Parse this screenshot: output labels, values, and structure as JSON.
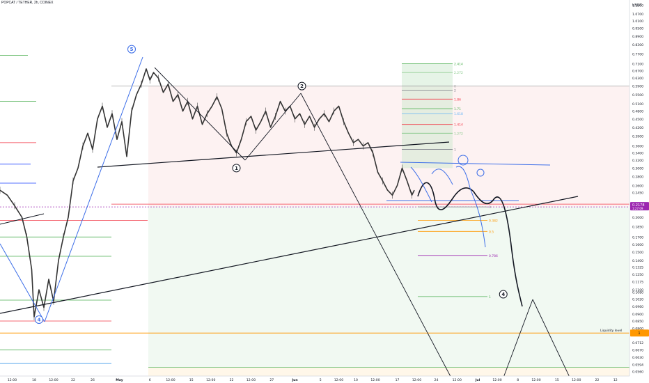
{
  "header": {
    "title": "POPCAT / TETHER, 2h, COINEX"
  },
  "chart_data": {
    "type": "line",
    "title": "POPCAT / TETHER, 2h, COINEX",
    "currency": "USDT",
    "y_scale": "log",
    "ylim": [
      0.054,
      1.2
    ],
    "last_price": "0.2178",
    "last_price_sub": "1:27:09",
    "liquidity_level": {
      "label": "Liquidity level",
      "value": 0.077,
      "price_label": "1"
    },
    "y_ticks": [
      {
        "v": 1.15,
        "l": "1.1500"
      },
      {
        "v": 1.07,
        "l": "1.0700"
      },
      {
        "v": 1.01,
        "l": "1.0100"
      },
      {
        "v": 0.95,
        "l": "0.9500"
      },
      {
        "v": 0.89,
        "l": "0.8900"
      },
      {
        "v": 0.83,
        "l": "0.8300"
      },
      {
        "v": 0.77,
        "l": "0.7700"
      },
      {
        "v": 0.71,
        "l": "0.7100"
      },
      {
        "v": 0.67,
        "l": "0.6700"
      },
      {
        "v": 0.63,
        "l": "0.6300"
      },
      {
        "v": 0.59,
        "l": "0.5900"
      },
      {
        "v": 0.55,
        "l": "0.5500"
      },
      {
        "v": 0.51,
        "l": "0.5100"
      },
      {
        "v": 0.48,
        "l": "0.4800"
      },
      {
        "v": 0.45,
        "l": "0.4500"
      },
      {
        "v": 0.42,
        "l": "0.4200"
      },
      {
        "v": 0.39,
        "l": "0.3900"
      },
      {
        "v": 0.36,
        "l": "0.3600"
      },
      {
        "v": 0.34,
        "l": "0.3400"
      },
      {
        "v": 0.32,
        "l": "0.3200"
      },
      {
        "v": 0.3,
        "l": "0.3000"
      },
      {
        "v": 0.28,
        "l": "0.2800"
      },
      {
        "v": 0.26,
        "l": "0.2600"
      },
      {
        "v": 0.245,
        "l": "0.2450"
      },
      {
        "v": 0.2,
        "l": "0.2000"
      },
      {
        "v": 0.185,
        "l": "0.1850"
      },
      {
        "v": 0.17,
        "l": "0.1700"
      },
      {
        "v": 0.16,
        "l": "0.1600"
      },
      {
        "v": 0.15,
        "l": "0.1500"
      },
      {
        "v": 0.14,
        "l": "0.1400"
      },
      {
        "v": 0.1325,
        "l": "0.1325"
      },
      {
        "v": 0.125,
        "l": "0.1250"
      },
      {
        "v": 0.1175,
        "l": "0.1175"
      },
      {
        "v": 0.11,
        "l": "0.1100"
      },
      {
        "v": 0.108,
        "l": "0.1080"
      },
      {
        "v": 0.102,
        "l": "0.1020"
      },
      {
        "v": 0.096,
        "l": "0.0960"
      },
      {
        "v": 0.09,
        "l": "0.0900"
      },
      {
        "v": 0.085,
        "l": "0.0850"
      },
      {
        "v": 0.08,
        "l": "0.0800"
      },
      {
        "v": 0.0712,
        "l": "0.0712"
      },
      {
        "v": 0.067,
        "l": "0.0670"
      },
      {
        "v": 0.063,
        "l": "0.0630"
      },
      {
        "v": 0.0594,
        "l": "0.0594"
      },
      {
        "v": 0.056,
        "l": "0.0560"
      }
    ],
    "x_ticks": [
      {
        "i": 10,
        "l": "12:00",
        "b": false
      },
      {
        "i": 28,
        "l": "18",
        "b": false
      },
      {
        "i": 44,
        "l": "12:00",
        "b": false
      },
      {
        "i": 60,
        "l": "22",
        "b": false
      },
      {
        "i": 76,
        "l": "26",
        "b": false
      },
      {
        "i": 98,
        "l": "May",
        "b": true
      },
      {
        "i": 123,
        "l": "6",
        "b": false
      },
      {
        "i": 140,
        "l": "12:00",
        "b": false
      },
      {
        "i": 157,
        "l": "15",
        "b": false
      },
      {
        "i": 173,
        "l": "12:00",
        "b": false
      },
      {
        "i": 190,
        "l": "22",
        "b": false
      },
      {
        "i": 206,
        "l": "12:00",
        "b": false
      },
      {
        "i": 223,
        "l": "27",
        "b": false
      },
      {
        "i": 242,
        "l": "Jun",
        "b": true
      },
      {
        "i": 263,
        "l": "5",
        "b": false
      },
      {
        "i": 278,
        "l": "12:00",
        "b": false
      },
      {
        "i": 292,
        "l": "10",
        "b": false
      },
      {
        "i": 308,
        "l": "12:00",
        "b": false
      },
      {
        "i": 326,
        "l": "17",
        "b": false
      },
      {
        "i": 342,
        "l": "12:00",
        "b": false
      },
      {
        "i": 358,
        "l": "24",
        "b": false
      },
      {
        "i": 375,
        "l": "12:00",
        "b": false
      },
      {
        "i": 392,
        "l": "Jul",
        "b": true
      },
      {
        "i": 408,
        "l": "12:00",
        "b": false
      },
      {
        "i": 425,
        "l": "8",
        "b": false
      },
      {
        "i": 440,
        "l": "12:00",
        "b": false
      },
      {
        "i": 457,
        "l": "15",
        "b": false
      },
      {
        "i": 473,
        "l": "12:00",
        "b": false
      },
      {
        "i": 490,
        "l": "22",
        "b": false
      },
      {
        "i": 505,
        "l": "12",
        "b": false
      }
    ],
    "price_path": [
      [
        0,
        0.25
      ],
      [
        6,
        0.24
      ],
      [
        12,
        0.22
      ],
      [
        18,
        0.2
      ],
      [
        22,
        0.17
      ],
      [
        26,
        0.13
      ],
      [
        28,
        0.088
      ],
      [
        32,
        0.11
      ],
      [
        36,
        0.095
      ],
      [
        40,
        0.12
      ],
      [
        44,
        0.1
      ],
      [
        48,
        0.14
      ],
      [
        52,
        0.17
      ],
      [
        56,
        0.2
      ],
      [
        60,
        0.27
      ],
      [
        64,
        0.3
      ],
      [
        68,
        0.36
      ],
      [
        72,
        0.4
      ],
      [
        76,
        0.35
      ],
      [
        80,
        0.45
      ],
      [
        84,
        0.5
      ],
      [
        88,
        0.42
      ],
      [
        92,
        0.47
      ],
      [
        96,
        0.38
      ],
      [
        100,
        0.44
      ],
      [
        104,
        0.33
      ],
      [
        108,
        0.48
      ],
      [
        112,
        0.55
      ],
      [
        116,
        0.6
      ],
      [
        120,
        0.68
      ],
      [
        123,
        0.62
      ],
      [
        126,
        0.66
      ],
      [
        130,
        0.63
      ],
      [
        134,
        0.56
      ],
      [
        138,
        0.6
      ],
      [
        142,
        0.52
      ],
      [
        146,
        0.55
      ],
      [
        150,
        0.48
      ],
      [
        154,
        0.52
      ],
      [
        158,
        0.45
      ],
      [
        162,
        0.5
      ],
      [
        166,
        0.43
      ],
      [
        170,
        0.47
      ],
      [
        174,
        0.5
      ],
      [
        178,
        0.54
      ],
      [
        182,
        0.49
      ],
      [
        186,
        0.4
      ],
      [
        190,
        0.36
      ],
      [
        194,
        0.34
      ],
      [
        198,
        0.38
      ],
      [
        202,
        0.44
      ],
      [
        206,
        0.46
      ],
      [
        210,
        0.41
      ],
      [
        214,
        0.44
      ],
      [
        218,
        0.48
      ],
      [
        222,
        0.42
      ],
      [
        226,
        0.46
      ],
      [
        230,
        0.52
      ],
      [
        234,
        0.48
      ],
      [
        238,
        0.5
      ],
      [
        242,
        0.45
      ],
      [
        246,
        0.47
      ],
      [
        250,
        0.43
      ],
      [
        254,
        0.46
      ],
      [
        258,
        0.42
      ],
      [
        262,
        0.45
      ],
      [
        266,
        0.47
      ],
      [
        270,
        0.44
      ],
      [
        274,
        0.48
      ],
      [
        278,
        0.5
      ],
      [
        282,
        0.44
      ],
      [
        286,
        0.4
      ],
      [
        290,
        0.37
      ],
      [
        294,
        0.38
      ],
      [
        298,
        0.36
      ],
      [
        302,
        0.37
      ],
      [
        306,
        0.34
      ],
      [
        310,
        0.29
      ],
      [
        314,
        0.27
      ],
      [
        318,
        0.25
      ],
      [
        322,
        0.24
      ],
      [
        326,
        0.26
      ],
      [
        330,
        0.3
      ],
      [
        334,
        0.27
      ],
      [
        338,
        0.24
      ],
      [
        340,
        0.25
      ]
    ],
    "fib_levels": [
      {
        "label": "2.414",
        "value": 0.71,
        "color": "#4caf50"
      },
      {
        "label": "2.272",
        "value": 0.66,
        "color": "#81c784"
      },
      {
        "label": "0",
        "value": 0.59,
        "color": "#9e9e9e"
      },
      {
        "label": "2",
        "value": 0.57,
        "color": "#787b86"
      },
      {
        "label": "1.86",
        "value": 0.53,
        "color": "#f23645"
      },
      {
        "label": "1.71",
        "value": 0.49,
        "color": "#4caf50"
      },
      {
        "label": "1.618",
        "value": 0.47,
        "color": "#64b5f6"
      },
      {
        "label": "1.414",
        "value": 0.43,
        "color": "#f23645"
      },
      {
        "label": "1.272",
        "value": 0.4,
        "color": "#81c784"
      },
      {
        "label": "1",
        "value": 0.35,
        "color": "#787b86"
      },
      {
        "label": "0",
        "value": 0.2178,
        "color": "#787b86"
      },
      {
        "label": "0.382",
        "value": 0.195,
        "color": "#ff9800"
      },
      {
        "label": "0.5",
        "value": 0.178,
        "color": "#ff9800"
      },
      {
        "label": "0.786",
        "value": 0.146,
        "color": "#9c27b0"
      },
      {
        "label": "1",
        "value": 0.104,
        "color": "#4caf50"
      }
    ],
    "wave_labels": [
      {
        "label": "5",
        "i": 108,
        "v": 0.8,
        "style": "blue"
      },
      {
        "label": "4",
        "i": 32,
        "v": 0.086,
        "style": "blue"
      },
      {
        "label": "2",
        "i": 234,
        "v": 0.59,
        "style": "dark"
      },
      {
        "label": "1",
        "i": 194,
        "v": 0.3,
        "style": "dark"
      },
      {
        "label": "4",
        "i": 413,
        "v": 0.106,
        "style": "dark"
      }
    ],
    "grid": false,
    "legend": "none"
  }
}
